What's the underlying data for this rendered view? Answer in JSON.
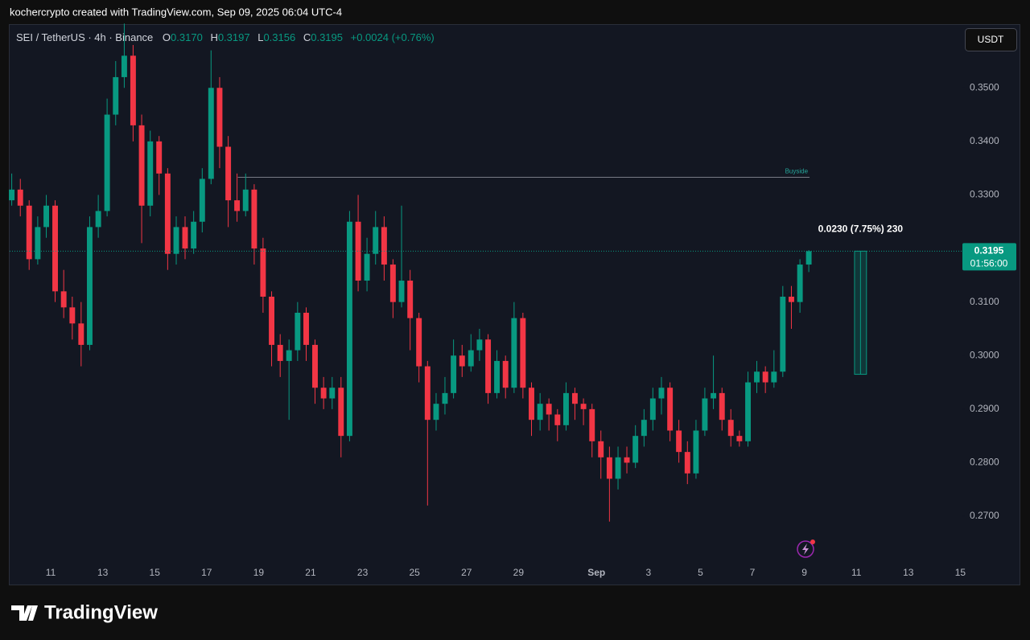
{
  "header": {
    "credit": "kochercrypto created with TradingView.com, Sep 09, 2025 06:04 UTC-4"
  },
  "chart_data": {
    "type": "candlestick",
    "legend": {
      "symbol": "SEI / TetherUS · 4h · Binance",
      "items": [
        {
          "label": "O",
          "value": "0.3170"
        },
        {
          "label": "H",
          "value": "0.3197"
        },
        {
          "label": "L",
          "value": "0.3156"
        },
        {
          "label": "C",
          "value": "0.3195"
        }
      ],
      "change": "+0.0024 (+0.76%)"
    },
    "currency_button": "USDT",
    "up_color": "#089981",
    "down_color": "#f23645",
    "x": [
      9.5,
      9.83,
      10.17,
      10.5,
      10.83,
      11.17,
      11.5,
      11.83,
      12.17,
      12.5,
      12.83,
      13.17,
      13.5,
      13.83,
      14.17,
      14.5,
      14.83,
      15.17,
      15.5,
      15.83,
      16.17,
      16.5,
      16.83,
      17.17,
      17.5,
      17.83,
      18.17,
      18.5,
      18.83,
      19.17,
      19.5,
      19.83,
      20.17,
      20.5,
      20.83,
      21.17,
      21.5,
      21.83,
      22.17,
      22.5,
      22.83,
      23.17,
      23.5,
      23.83,
      24.17,
      24.5,
      24.83,
      25.17,
      25.5,
      25.83,
      26.17,
      26.5,
      26.83,
      27.17,
      27.5,
      27.83,
      28.17,
      28.5,
      28.83,
      29.17,
      29.5,
      29.83,
      30.17,
      30.5,
      30.83,
      31.17,
      31.5,
      31.83,
      32.17,
      32.5,
      32.83,
      33.17,
      33.5,
      33.83,
      34.17,
      34.5,
      34.83,
      35.17,
      35.5,
      35.83,
      36.17,
      36.5,
      36.83,
      37.17,
      37.5,
      37.83,
      38.17,
      38.5,
      38.83,
      39.17,
      39.5,
      39.83,
      40.17
    ],
    "open": [
      0.329,
      0.331,
      0.328,
      0.318,
      0.324,
      0.328,
      0.312,
      0.309,
      0.306,
      0.302,
      0.324,
      0.327,
      0.345,
      0.352,
      0.356,
      0.343,
      0.328,
      0.34,
      0.334,
      0.319,
      0.324,
      0.32,
      0.325,
      0.333,
      0.35,
      0.339,
      0.329,
      0.327,
      0.331,
      0.32,
      0.311,
      0.302,
      0.299,
      0.301,
      0.308,
      0.302,
      0.294,
      0.292,
      0.294,
      0.285,
      0.325,
      0.314,
      0.319,
      0.324,
      0.317,
      0.31,
      0.314,
      0.307,
      0.298,
      0.288,
      0.291,
      0.293,
      0.3,
      0.298,
      0.301,
      0.303,
      0.293,
      0.299,
      0.294,
      0.307,
      0.294,
      0.288,
      0.291,
      0.289,
      0.287,
      0.293,
      0.291,
      0.29,
      0.284,
      0.281,
      0.277,
      0.281,
      0.28,
      0.285,
      0.288,
      0.292,
      0.294,
      0.286,
      0.282,
      0.278,
      0.286,
      0.292,
      0.293,
      0.288,
      0.285,
      0.284,
      0.295,
      0.297,
      0.295,
      0.297,
      0.311,
      0.31,
      0.317
    ],
    "high": [
      0.334,
      0.333,
      0.329,
      0.326,
      0.33,
      0.329,
      0.316,
      0.311,
      0.31,
      0.326,
      0.33,
      0.348,
      0.355,
      0.362,
      0.358,
      0.345,
      0.342,
      0.341,
      0.335,
      0.326,
      0.326,
      0.327,
      0.335,
      0.357,
      0.352,
      0.341,
      0.334,
      0.334,
      0.332,
      0.322,
      0.312,
      0.304,
      0.303,
      0.31,
      0.309,
      0.303,
      0.296,
      0.296,
      0.296,
      0.327,
      0.33,
      0.322,
      0.327,
      0.326,
      0.318,
      0.328,
      0.316,
      0.308,
      0.299,
      0.293,
      0.296,
      0.303,
      0.302,
      0.304,
      0.305,
      0.304,
      0.301,
      0.3,
      0.31,
      0.308,
      0.295,
      0.293,
      0.292,
      0.29,
      0.295,
      0.294,
      0.292,
      0.291,
      0.286,
      0.283,
      0.283,
      0.283,
      0.287,
      0.29,
      0.294,
      0.296,
      0.295,
      0.288,
      0.284,
      0.288,
      0.294,
      0.3,
      0.294,
      0.29,
      0.286,
      0.297,
      0.299,
      0.298,
      0.301,
      0.313,
      0.313,
      0.318,
      0.3197
    ],
    "low": [
      0.328,
      0.326,
      0.316,
      0.317,
      0.322,
      0.31,
      0.307,
      0.303,
      0.298,
      0.301,
      0.322,
      0.326,
      0.343,
      0.35,
      0.34,
      0.321,
      0.326,
      0.33,
      0.316,
      0.317,
      0.318,
      0.319,
      0.323,
      0.332,
      0.335,
      0.324,
      0.325,
      0.326,
      0.317,
      0.308,
      0.298,
      0.296,
      0.288,
      0.299,
      0.299,
      0.291,
      0.29,
      0.29,
      0.281,
      0.284,
      0.312,
      0.312,
      0.317,
      0.314,
      0.307,
      0.309,
      0.301,
      0.295,
      0.272,
      0.286,
      0.289,
      0.292,
      0.296,
      0.297,
      0.299,
      0.291,
      0.292,
      0.292,
      0.293,
      0.292,
      0.285,
      0.286,
      0.286,
      0.284,
      0.286,
      0.288,
      0.287,
      0.281,
      0.277,
      0.269,
      0.275,
      0.278,
      0.279,
      0.283,
      0.286,
      0.289,
      0.284,
      0.28,
      0.276,
      0.277,
      0.285,
      0.29,
      0.286,
      0.283,
      0.283,
      0.283,
      0.293,
      0.293,
      0.294,
      0.296,
      0.305,
      0.308,
      0.3156
    ],
    "close": [
      0.331,
      0.328,
      0.318,
      0.324,
      0.328,
      0.312,
      0.309,
      0.306,
      0.302,
      0.324,
      0.327,
      0.345,
      0.352,
      0.356,
      0.343,
      0.328,
      0.34,
      0.334,
      0.319,
      0.324,
      0.32,
      0.325,
      0.333,
      0.35,
      0.339,
      0.329,
      0.327,
      0.331,
      0.32,
      0.311,
      0.302,
      0.299,
      0.301,
      0.308,
      0.302,
      0.294,
      0.292,
      0.294,
      0.285,
      0.325,
      0.314,
      0.319,
      0.324,
      0.317,
      0.31,
      0.314,
      0.307,
      0.298,
      0.288,
      0.291,
      0.293,
      0.3,
      0.298,
      0.301,
      0.303,
      0.293,
      0.299,
      0.294,
      0.307,
      0.294,
      0.288,
      0.291,
      0.289,
      0.287,
      0.293,
      0.291,
      0.29,
      0.284,
      0.281,
      0.277,
      0.281,
      0.28,
      0.285,
      0.288,
      0.292,
      0.294,
      0.286,
      0.282,
      0.278,
      0.286,
      0.292,
      0.293,
      0.288,
      0.285,
      0.284,
      0.295,
      0.297,
      0.295,
      0.297,
      0.311,
      0.31,
      0.317,
      0.3195
    ],
    "xlim": [
      9.42,
      46.05
    ],
    "ylim": [
      0.2613,
      0.3619
    ],
    "xticks": [
      11,
      13,
      15,
      17,
      19,
      21,
      23,
      25,
      27,
      29,
      {
        "value": 32,
        "label": "Sep"
      },
      {
        "value": 34,
        "label": "3"
      },
      {
        "value": 36,
        "label": "5"
      },
      {
        "value": 38,
        "label": "7"
      },
      {
        "value": 40,
        "label": "9"
      },
      {
        "value": 42,
        "label": "11"
      },
      {
        "value": 44,
        "label": "13"
      },
      {
        "value": 46,
        "label": "15"
      }
    ],
    "yticks": [
      {
        "value": 0.27,
        "label": "0.2700"
      },
      {
        "value": 0.28,
        "label": "0.2800"
      },
      {
        "value": 0.29,
        "label": "0.2900"
      },
      {
        "value": 0.3,
        "label": "0.3000"
      },
      {
        "value": 0.31,
        "label": "0.3100"
      },
      {
        "value": 0.32,
        "label": "0.3200"
      },
      {
        "value": 0.33,
        "label": "0.3300"
      },
      {
        "value": 0.34,
        "label": "0.3400"
      },
      {
        "value": 0.35,
        "label": "0.3500"
      }
    ],
    "grid": false,
    "last_price": {
      "value": 0.3195,
      "countdown": "01:56:00"
    },
    "buyside": {
      "label": "Buyside",
      "value": 0.3333,
      "x": [
        18.2,
        40.2
      ]
    },
    "measure": {
      "from": 0.2965,
      "to": 0.3195,
      "x": [
        41.93,
        42.39
      ],
      "label": "0.0230 (7.75%) 230"
    }
  },
  "footer": {
    "brand": "TradingView"
  }
}
